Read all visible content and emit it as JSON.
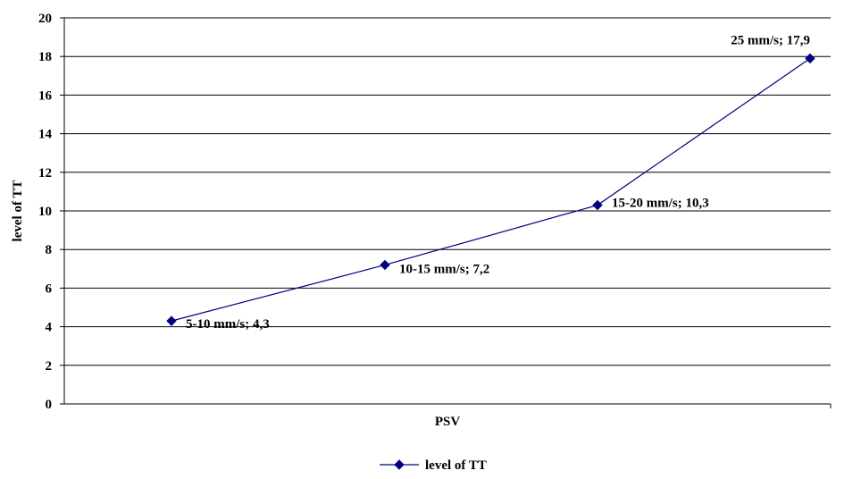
{
  "chart_data": {
    "type": "line",
    "title": "",
    "xlabel": "PSV",
    "ylabel": "level of TT",
    "ylim": [
      0,
      20
    ],
    "y_ticks": [
      0,
      2,
      4,
      6,
      8,
      10,
      12,
      14,
      16,
      18,
      20
    ],
    "grid": true,
    "legend_position": "bottom",
    "categories": [
      "5-10 mm/s",
      "10-15 mm/s",
      "15-20 mm/s",
      "25 mm/s"
    ],
    "series": [
      {
        "name": "level of TT",
        "color": "#000080",
        "marker": "diamond",
        "values": [
          4.3,
          7.2,
          10.3,
          17.9
        ],
        "data_labels": [
          "5-10 mm/s; 4,3",
          "10-15 mm/s; 7,2",
          "15-20 mm/s; 10,3",
          "25 mm/s; 17,9"
        ]
      }
    ]
  }
}
